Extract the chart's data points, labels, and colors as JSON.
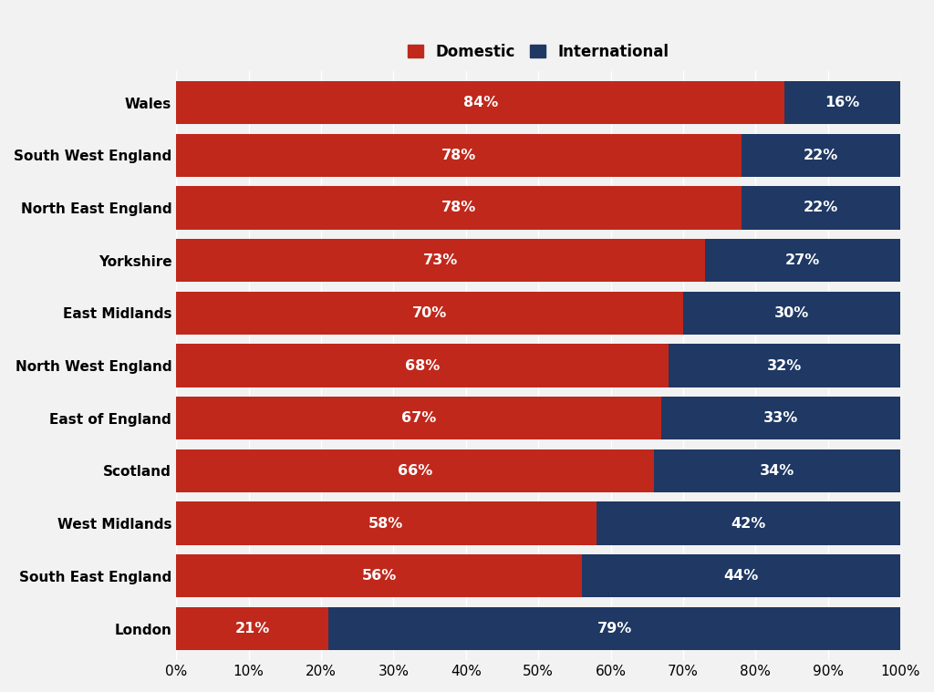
{
  "regions": [
    "Wales",
    "South West England",
    "North East England",
    "Yorkshire",
    "East Midlands",
    "North West England",
    "East of England",
    "Scotland",
    "West Midlands",
    "South East England",
    "London"
  ],
  "domestic": [
    84,
    78,
    78,
    73,
    70,
    68,
    67,
    66,
    58,
    56,
    21
  ],
  "international": [
    16,
    22,
    22,
    27,
    30,
    32,
    33,
    34,
    42,
    44,
    79
  ],
  "domestic_color": "#C0281C",
  "international_color": "#1F3864",
  "bar_height": 0.82,
  "legend_domestic": "Domestic",
  "legend_international": "International",
  "xlabel_ticks": [
    0,
    10,
    20,
    30,
    40,
    50,
    60,
    70,
    80,
    90,
    100
  ],
  "xlabel_labels": [
    "0%",
    "10%",
    "20%",
    "30%",
    "40%",
    "50%",
    "60%",
    "70%",
    "80%",
    "90%",
    "100%"
  ],
  "background_color": "#F2F2F2",
  "grid_color": "#FFFFFF",
  "text_color": "#FFFFFF",
  "label_fontsize": 11.5,
  "tick_fontsize": 11,
  "legend_fontsize": 12,
  "ytick_fontsize": 11
}
